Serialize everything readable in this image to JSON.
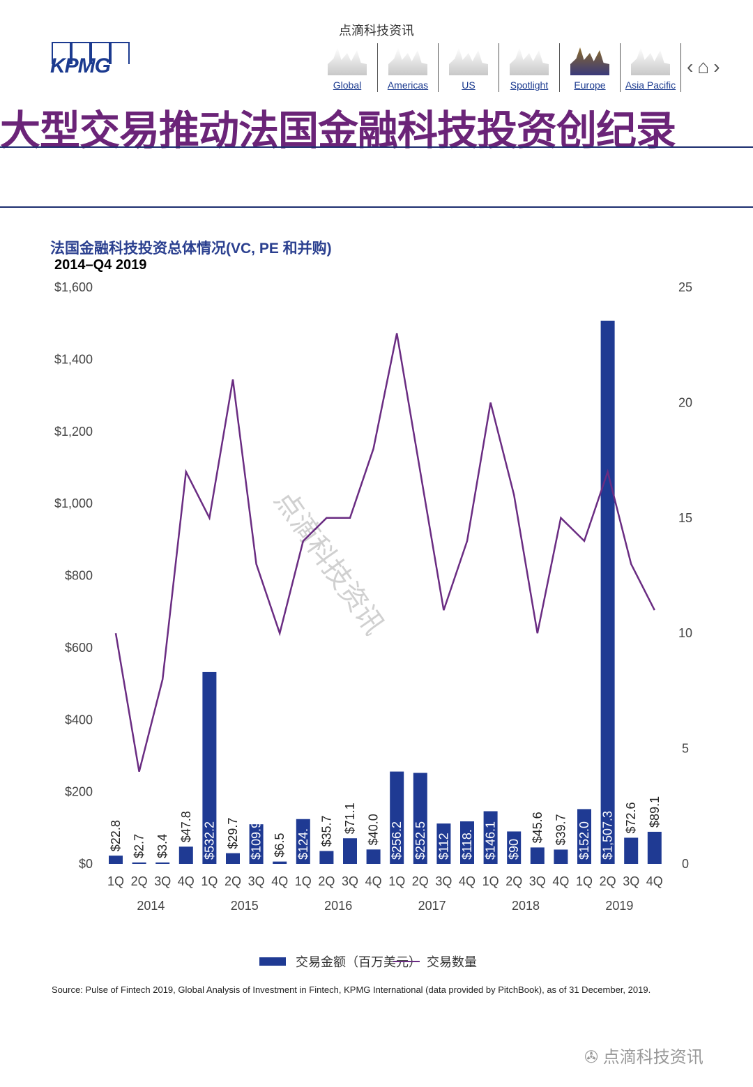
{
  "brand": "点滴科技资讯",
  "logo": "KPMG",
  "nav": [
    {
      "label": "Global",
      "icon": "global-skyline-icon"
    },
    {
      "label": "Americas",
      "icon": "americas-skyline-icon"
    },
    {
      "label": "US",
      "icon": "us-skyline-icon"
    },
    {
      "label": "Spotlight",
      "icon": "spotlight-icon"
    },
    {
      "label": "Europe",
      "icon": "europe-skyline-icon"
    },
    {
      "label": "Asia Pacific",
      "icon": "asia-skyline-icon"
    }
  ],
  "headline": "大型交易推动法国金融科技投资创纪录",
  "source": "Source: Pulse of Fintech 2019, Global Analysis of Investment in Fintech, KPMG International (data provided by PitchBook), as of 31 December, 2019.",
  "watermark": "点滴科技资讯",
  "colors": {
    "bar": "#1f3a93",
    "line": "#6a2c82",
    "headline": "#6b2478"
  },
  "chart_data": {
    "type": "bar+line",
    "title": "法国金融科技投资总体情况(VC, PE 和并购)",
    "subtitle": "2014–Q4 2019",
    "quarters": [
      "1Q",
      "2Q",
      "3Q",
      "4Q",
      "1Q",
      "2Q",
      "3Q",
      "4Q",
      "1Q",
      "2Q",
      "3Q",
      "4Q",
      "1Q",
      "2Q",
      "3Q",
      "4Q",
      "1Q",
      "2Q",
      "3Q",
      "4Q",
      "1Q",
      "2Q",
      "3Q",
      "4Q"
    ],
    "years": [
      "2014",
      "2015",
      "2016",
      "2017",
      "2018",
      "2019"
    ],
    "left_axis": {
      "ticks": [
        "$0",
        "$200",
        "$400",
        "$600",
        "$800",
        "$1,000",
        "$1,200",
        "$1,400",
        "$1,600"
      ],
      "ylim": [
        0,
        1600
      ]
    },
    "right_axis": {
      "ticks": [
        "0",
        "5",
        "10",
        "15",
        "20",
        "25"
      ],
      "ylim": [
        0,
        25
      ]
    },
    "series": [
      {
        "name": "交易金额（百万美元）",
        "type": "bar",
        "values": [
          22.8,
          2.7,
          3.4,
          47.8,
          532.2,
          29.7,
          109.9,
          6.5,
          124.3,
          35.7,
          71.1,
          40.0,
          256.2,
          252.5,
          112,
          118,
          146.1,
          90,
          45.6,
          39.7,
          152.0,
          1507.3,
          72.6,
          89.1
        ],
        "labels": [
          "$22.8",
          "$2.7",
          "$3.4",
          "$47.8",
          "$532.2",
          "$29.7",
          "$109.9",
          "$6.5",
          "$124.",
          "$35.7",
          "$71.1",
          "$40.0",
          "$256.2",
          "$252.5",
          "$112",
          "$118.",
          "$146.1",
          "$90",
          "$45.6",
          "$39.7",
          "$152.0",
          "$1,507.3",
          "$72.6",
          "$89.1"
        ]
      },
      {
        "name": "交易数量",
        "type": "line",
        "values": [
          10,
          4,
          8,
          17,
          15,
          21,
          13,
          10,
          14,
          15,
          15,
          18,
          23,
          17,
          11,
          14,
          20,
          16,
          10,
          15,
          14,
          17,
          13,
          11
        ]
      }
    ],
    "legend": "bottom"
  }
}
